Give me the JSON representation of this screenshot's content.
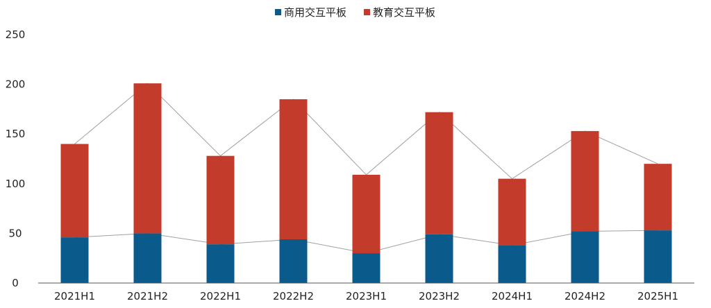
{
  "chart_data": {
    "type": "bar",
    "stacked": true,
    "title": "",
    "xlabel": "",
    "ylabel": "",
    "categories": [
      "2021H1",
      "2021H2",
      "2022H1",
      "2022H2",
      "2023H1",
      "2023H2",
      "2024H1",
      "2024H2",
      "2025H1"
    ],
    "series": [
      {
        "name": "商用交互平板",
        "color": "#0b5a8c",
        "values": [
          46,
          50,
          39,
          44,
          30,
          49,
          38,
          52,
          53
        ]
      },
      {
        "name": "教育交互平板",
        "color": "#c33b2b",
        "values": [
          94,
          151,
          89,
          141,
          79,
          123,
          67,
          101,
          67
        ]
      }
    ],
    "ylim": [
      0,
      250
    ],
    "yticks": [
      0,
      50,
      100,
      150,
      200,
      250
    ],
    "grid": false,
    "legend": "top-center",
    "connector_lines": true
  }
}
